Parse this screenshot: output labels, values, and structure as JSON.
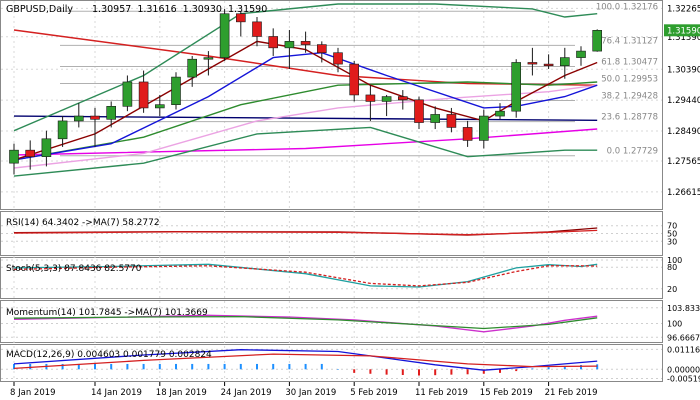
{
  "header": {
    "symbol": "GBPUSD,Daily",
    "ohlc": "1.30957  1.31616  1.30930  1.31590"
  },
  "colors": {
    "bull": "#2e9e2e",
    "bear": "#e01b1b",
    "wick": "#1a1a1a",
    "ma_blue": "#1414d8",
    "ma_darkred": "#8b0000",
    "ma_green": "#2e8b2e",
    "ma_pink": "#e600e6",
    "ma_lightpink": "#eba3e3",
    "ma_navy": "#00006e",
    "ma_red": "#d42020",
    "bb": "#2e8b57",
    "fib": "#b0b0b0",
    "last_bg": "#2e9e2e"
  },
  "chart_data": [
    {
      "type": "candlestick",
      "title": "GBPUSD,Daily",
      "ylim": [
        1.2615,
        1.324
      ],
      "price_ticks": [
        "1.32265",
        "1.31390",
        "1.30390",
        "1.29440",
        "1.28490",
        "1.27565",
        "1.26615"
      ],
      "last_price": "1.31590",
      "x_labels": [
        {
          "i": 0,
          "label": "8 Jan 2019"
        },
        {
          "i": 5,
          "label": "14 Jan 2019"
        },
        {
          "i": 9,
          "label": "18 Jan 2019"
        },
        {
          "i": 13,
          "label": "24 Jan 2019"
        },
        {
          "i": 17,
          "label": "30 Jan 2019"
        },
        {
          "i": 21,
          "label": "5 Feb 2019"
        },
        {
          "i": 25,
          "label": "11 Feb 2019"
        },
        {
          "i": 29,
          "label": "15 Feb 2019"
        },
        {
          "i": 33,
          "label": "21 Feb 2019"
        }
      ],
      "candles": [
        {
          "o": 1.275,
          "h": 1.281,
          "l": 1.2715,
          "c": 1.279
        },
        {
          "o": 1.279,
          "h": 1.282,
          "l": 1.273,
          "c": 1.277
        },
        {
          "o": 1.277,
          "h": 1.285,
          "l": 1.274,
          "c": 1.2825
        },
        {
          "o": 1.2825,
          "h": 1.2895,
          "l": 1.28,
          "c": 1.288
        },
        {
          "o": 1.288,
          "h": 1.2935,
          "l": 1.286,
          "c": 1.2895
        },
        {
          "o": 1.2895,
          "h": 1.292,
          "l": 1.28,
          "c": 1.2885
        },
        {
          "o": 1.2885,
          "h": 1.294,
          "l": 1.286,
          "c": 1.2925
        },
        {
          "o": 1.2925,
          "h": 1.302,
          "l": 1.291,
          "c": 1.3
        },
        {
          "o": 1.3,
          "h": 1.3035,
          "l": 1.2905,
          "c": 1.292
        },
        {
          "o": 1.292,
          "h": 1.296,
          "l": 1.2895,
          "c": 1.293
        },
        {
          "o": 1.293,
          "h": 1.303,
          "l": 1.2915,
          "c": 1.3015
        },
        {
          "o": 1.3015,
          "h": 1.308,
          "l": 1.2985,
          "c": 1.307
        },
        {
          "o": 1.307,
          "h": 1.3095,
          "l": 1.302,
          "c": 1.3075
        },
        {
          "o": 1.3075,
          "h": 1.3225,
          "l": 1.3065,
          "c": 1.321
        },
        {
          "o": 1.321,
          "h": 1.3218,
          "l": 1.314,
          "c": 1.3185
        },
        {
          "o": 1.3185,
          "h": 1.32,
          "l": 1.311,
          "c": 1.314
        },
        {
          "o": 1.314,
          "h": 1.3165,
          "l": 1.308,
          "c": 1.3105
        },
        {
          "o": 1.3105,
          "h": 1.316,
          "l": 1.304,
          "c": 1.3125
        },
        {
          "o": 1.3125,
          "h": 1.3155,
          "l": 1.309,
          "c": 1.3115
        },
        {
          "o": 1.3115,
          "h": 1.3125,
          "l": 1.306,
          "c": 1.309
        },
        {
          "o": 1.309,
          "h": 1.3105,
          "l": 1.303,
          "c": 1.3055
        },
        {
          "o": 1.3055,
          "h": 1.3065,
          "l": 1.294,
          "c": 1.296
        },
        {
          "o": 1.296,
          "h": 1.299,
          "l": 1.288,
          "c": 1.294
        },
        {
          "o": 1.294,
          "h": 1.296,
          "l": 1.2895,
          "c": 1.2955
        },
        {
          "o": 1.2955,
          "h": 1.2975,
          "l": 1.2915,
          "c": 1.2945
        },
        {
          "o": 1.2945,
          "h": 1.2955,
          "l": 1.2855,
          "c": 1.2875
        },
        {
          "o": 1.2875,
          "h": 1.2925,
          "l": 1.2855,
          "c": 1.29
        },
        {
          "o": 1.29,
          "h": 1.292,
          "l": 1.2845,
          "c": 1.286
        },
        {
          "o": 1.286,
          "h": 1.288,
          "l": 1.28,
          "c": 1.282
        },
        {
          "o": 1.282,
          "h": 1.2915,
          "l": 1.2795,
          "c": 1.2895
        },
        {
          "o": 1.2895,
          "h": 1.2935,
          "l": 1.2885,
          "c": 1.291
        },
        {
          "o": 1.291,
          "h": 1.307,
          "l": 1.289,
          "c": 1.306
        },
        {
          "o": 1.306,
          "h": 1.3105,
          "l": 1.302,
          "c": 1.3055
        },
        {
          "o": 1.3055,
          "h": 1.3085,
          "l": 1.304,
          "c": 1.305
        },
        {
          "o": 1.305,
          "h": 1.3105,
          "l": 1.301,
          "c": 1.3075
        },
        {
          "o": 1.3075,
          "h": 1.311,
          "l": 1.305,
          "c": 1.3095
        },
        {
          "o": 1.3095,
          "h": 1.3162,
          "l": 1.3093,
          "c": 1.3159
        }
      ],
      "fibonacci": [
        {
          "label": "100.0 1.32176",
          "price": 1.32176
        },
        {
          "label": "76.4 1.31127",
          "price": 1.31127
        },
        {
          "label": "61.8 1.30477",
          "price": 1.30477
        },
        {
          "label": "50.0 1.29953",
          "price": 1.29953
        },
        {
          "label": "38.2 1.29428",
          "price": 1.29428
        },
        {
          "label": "23.6 1.28778",
          "price": 1.28778
        },
        {
          "label": "0.0 1.27729",
          "price": 1.27729
        }
      ],
      "ma_lines": [
        {
          "color": "ma_red",
          "points": [
            [
              0,
              1.316
            ],
            [
              12,
              1.308
            ],
            [
              20,
              1.302
            ],
            [
              28,
              1.2995
            ],
            [
              36,
              1.299
            ]
          ]
        },
        {
          "color": "ma_navy",
          "points": [
            [
              0,
              1.2895
            ],
            [
              36,
              1.2882
            ]
          ]
        },
        {
          "color": "ma_pink",
          "points": [
            [
              0,
              1.2775
            ],
            [
              18,
              1.2795
            ],
            [
              28,
              1.2825
            ],
            [
              36,
              1.2855
            ]
          ]
        },
        {
          "color": "ma_lightpink",
          "points": [
            [
              0,
              1.2735
            ],
            [
              8,
              1.278
            ],
            [
              15,
              1.288
            ],
            [
              20,
              1.292
            ],
            [
              27,
              1.295
            ],
            [
              33,
              1.297
            ],
            [
              36,
              1.299
            ]
          ]
        },
        {
          "color": "ma_green",
          "points": [
            [
              0,
              1.276
            ],
            [
              8,
              1.283
            ],
            [
              14,
              1.293
            ],
            [
              20,
              1.299
            ],
            [
              28,
              1.3
            ],
            [
              33,
              1.299
            ],
            [
              36,
              1.3
            ]
          ]
        },
        {
          "color": "ma_blue",
          "points": [
            [
              0,
              1.276
            ],
            [
              6,
              1.281
            ],
            [
              12,
              1.2955
            ],
            [
              16,
              1.3075
            ],
            [
              19,
              1.309
            ],
            [
              23,
              1.302
            ],
            [
              29,
              1.292
            ],
            [
              31,
              1.2925
            ],
            [
              34,
              1.2955
            ],
            [
              36,
              1.299
            ]
          ]
        },
        {
          "color": "ma_darkred",
          "points": [
            [
              0,
              1.276
            ],
            [
              5,
              1.284
            ],
            [
              12,
              1.304
            ],
            [
              15,
              1.3125
            ],
            [
              18,
              1.31
            ],
            [
              22,
              1.299
            ],
            [
              26,
              1.292
            ],
            [
              29,
              1.288
            ],
            [
              31,
              1.294
            ],
            [
              34,
              1.302
            ],
            [
              36,
              1.306
            ]
          ]
        },
        {
          "color": "bb",
          "points": [
            [
              0,
              1.285
            ],
            [
              8,
              1.302
            ],
            [
              14,
              1.321
            ],
            [
              20,
              1.324
            ],
            [
              26,
              1.324
            ],
            [
              32,
              1.3225
            ],
            [
              34,
              1.32
            ],
            [
              36,
              1.321
            ]
          ]
        },
        {
          "color": "bb",
          "points": [
            [
              0,
              1.271
            ],
            [
              8,
              1.275
            ],
            [
              15,
              1.284
            ],
            [
              22,
              1.286
            ],
            [
              28,
              1.277
            ],
            [
              34,
              1.279
            ],
            [
              36,
              1.279
            ]
          ]
        }
      ]
    },
    {
      "type": "line",
      "title": "RSI(14) 64.3402  ->MA(7) 58.2772",
      "ylim": [
        0,
        100
      ],
      "ticks": [
        "70",
        "50",
        "30"
      ],
      "series": [
        {
          "color": "#8b0000",
          "points": [
            [
              0,
              52
            ],
            [
              10,
              55
            ],
            [
              20,
              54
            ],
            [
              28,
              46
            ],
            [
              33,
              54
            ],
            [
              36,
              64
            ]
          ]
        },
        {
          "color": "#d42020",
          "points": [
            [
              0,
              51
            ],
            [
              10,
              54
            ],
            [
              20,
              53
            ],
            [
              28,
              47
            ],
            [
              33,
              53
            ],
            [
              36,
              58
            ]
          ]
        }
      ]
    },
    {
      "type": "line",
      "title": "Stoch(5,3,3) 87.8436  82.5770",
      "ylim": [
        0,
        100
      ],
      "ticks": [
        "100",
        "80",
        "20"
      ],
      "series": [
        {
          "color": "#20a0a0",
          "points": [
            [
              0,
              78
            ],
            [
              6,
              82
            ],
            [
              12,
              88
            ],
            [
              18,
              62
            ],
            [
              22,
              28
            ],
            [
              25,
              25
            ],
            [
              28,
              40
            ],
            [
              31,
              78
            ],
            [
              33,
              87
            ],
            [
              35,
              82
            ],
            [
              36,
              88
            ]
          ]
        },
        {
          "color": "#d42020",
          "dashed": true,
          "points": [
            [
              0,
              74
            ],
            [
              6,
              80
            ],
            [
              12,
              84
            ],
            [
              18,
              66
            ],
            [
              22,
              35
            ],
            [
              25,
              28
            ],
            [
              28,
              38
            ],
            [
              31,
              68
            ],
            [
              33,
              84
            ],
            [
              35,
              84
            ],
            [
              36,
              83
            ]
          ]
        }
      ]
    },
    {
      "type": "line",
      "title": "Momentum(14) 101.7845  ->MA(7) 101.3669",
      "ylim": [
        96.0,
        105.0
      ],
      "ticks": [
        "103.8333",
        "100",
        "96.6667"
      ],
      "series": [
        {
          "color": "#cc30cc",
          "points": [
            [
              0,
              101.0
            ],
            [
              6,
              101.5
            ],
            [
              12,
              102.0
            ],
            [
              17,
              101.6
            ],
            [
              21,
              100.9
            ],
            [
              26,
              99.4
            ],
            [
              29,
              98.0
            ],
            [
              32,
              99.4
            ],
            [
              34,
              100.8
            ],
            [
              36,
              101.8
            ]
          ]
        },
        {
          "color": "#2e8b2e",
          "points": [
            [
              0,
              101.3
            ],
            [
              8,
              101.6
            ],
            [
              14,
              101.7
            ],
            [
              20,
              100.9
            ],
            [
              26,
              99.5
            ],
            [
              29,
              98.8
            ],
            [
              33,
              99.8
            ],
            [
              36,
              101.4
            ]
          ]
        }
      ]
    },
    {
      "type": "bar",
      "title": "MACD(12,26,9) 0.004603  0.001779  0.002824",
      "ylim": [
        -0.006,
        0.0125
      ],
      "ticks": [
        "0.011161",
        "0.000000",
        "-0.005191"
      ],
      "lines": [
        {
          "color": "#1414d8",
          "points": [
            [
              0,
              0.003
            ],
            [
              8,
              0.008
            ],
            [
              14,
              0.011
            ],
            [
              20,
              0.01
            ],
            [
              26,
              0.0025
            ],
            [
              29,
              -0.0005
            ],
            [
              32,
              0.0015
            ],
            [
              36,
              0.0046
            ]
          ]
        },
        {
          "color": "#d42020",
          "points": [
            [
              0,
              0.0005
            ],
            [
              8,
              0.005
            ],
            [
              16,
              0.0085
            ],
            [
              22,
              0.0075
            ],
            [
              28,
              0.003
            ],
            [
              32,
              0.0015
            ],
            [
              36,
              0.0018
            ]
          ]
        }
      ],
      "histogram": [
        0.003,
        0.003,
        0.003,
        0.003,
        0.003,
        0.003,
        0.003,
        0.003,
        0.003,
        0.003,
        0.003,
        0.003,
        0.003,
        0.003,
        0.003,
        0.003,
        0.003,
        0.003,
        0.003,
        0.003,
        0.0,
        -0.002,
        -0.0025,
        -0.003,
        -0.0032,
        -0.0035,
        -0.0033,
        -0.003,
        -0.0028,
        -0.0025,
        -0.002,
        -0.001,
        0.0005,
        0.0012,
        0.0018,
        0.0024,
        0.0028
      ]
    }
  ]
}
